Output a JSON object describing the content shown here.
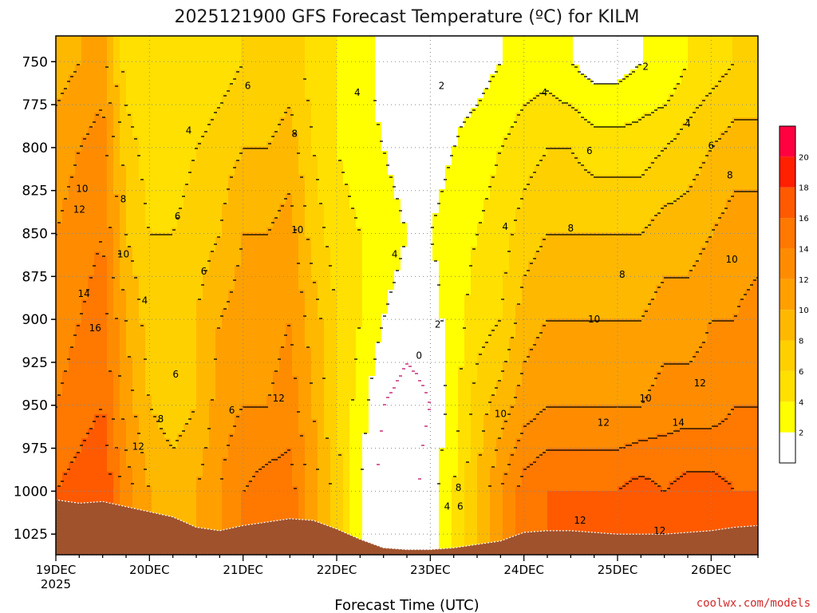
{
  "chart_data": {
    "type": "heatmap",
    "title": "2025121900 GFS Forecast Temperature (ºC) for KILM",
    "xlabel": "Forecast Time (UTC)",
    "ylabel": "",
    "x_ticks": [
      "19DEC",
      "20DEC",
      "21DEC",
      "22DEC",
      "23DEC",
      "24DEC",
      "25DEC",
      "26DEC"
    ],
    "x_tick_sub": "2025",
    "xlim": [
      "2025-12-19 00Z",
      "2025-12-26 12Z"
    ],
    "y_ticks": [
      750,
      775,
      800,
      825,
      850,
      875,
      900,
      925,
      950,
      975,
      1000,
      1025
    ],
    "ylim": [
      735,
      1037
    ],
    "y_unit": "hPa",
    "grid": true,
    "colorbar": {
      "levels": [
        0,
        2,
        4,
        6,
        8,
        10,
        12,
        14,
        16,
        18,
        20,
        22
      ],
      "labels": [
        "2",
        "4",
        "6",
        "8",
        "10",
        "12",
        "14",
        "16",
        "18",
        "20"
      ],
      "colors": [
        "#ffffff",
        "#ffff00",
        "#ffe000",
        "#ffd000",
        "#ffb800",
        "#ffa000",
        "#ff8c00",
        "#ff7800",
        "#ff5a00",
        "#ff2000",
        "#ff0040"
      ]
    },
    "time_days": [
      0,
      0.25,
      0.5,
      0.75,
      1,
      1.25,
      1.5,
      1.75,
      2,
      2.25,
      2.5,
      2.75,
      3,
      3.25,
      3.5,
      3.75,
      4,
      4.25,
      4.5,
      4.75,
      5,
      5.25,
      5.5,
      5.75,
      6,
      6.25,
      6.5,
      6.75,
      7,
      7.25,
      7.5
    ],
    "temperature_profiles": {
      "750": [
        9,
        10,
        11,
        5,
        4,
        4,
        4,
        5,
        6,
        6,
        7,
        5,
        4,
        3,
        1,
        0,
        0,
        1,
        1,
        2,
        3,
        3,
        2,
        1,
        1,
        2,
        2,
        4,
        5,
        6,
        6
      ],
      "800": [
        11,
        12,
        13,
        7,
        5,
        5,
        6,
        7,
        8,
        8,
        9,
        6,
        4,
        3,
        2,
        1,
        1,
        2,
        3,
        4,
        5,
        6,
        6,
        5,
        5,
        5,
        6,
        7,
        8,
        9,
        9
      ],
      "850": [
        12,
        13,
        14,
        8,
        6,
        6,
        7,
        8,
        10,
        10,
        11,
        7,
        5,
        4,
        3,
        2,
        2,
        3,
        4,
        5,
        7,
        8,
        8,
        8,
        8,
        8,
        9,
        9,
        10,
        11,
        11
      ],
      "900": [
        13,
        14,
        15,
        10,
        7,
        7,
        8,
        10,
        11,
        11,
        12,
        9,
        6,
        4,
        2,
        1,
        1,
        3,
        5,
        6,
        9,
        10,
        10,
        10,
        10,
        10,
        11,
        11,
        12,
        12,
        13
      ],
      "950": [
        14,
        15,
        16,
        11,
        8,
        7,
        8,
        11,
        12,
        12,
        13,
        10,
        6,
        3,
        0,
        -1,
        0,
        3,
        7,
        9,
        11,
        12,
        12,
        12,
        12,
        12,
        13,
        13,
        13,
        14,
        14
      ],
      "1000": [
        16,
        17,
        18,
        13,
        10,
        9,
        10,
        12,
        14,
        15,
        15,
        11,
        7,
        2,
        -1,
        -1,
        1,
        4,
        8,
        12,
        15,
        16,
        16,
        16,
        16,
        17,
        16,
        17,
        17,
        16,
        16
      ]
    },
    "contour_labels": [
      {
        "t": 0.28,
        "p": 824,
        "v": "10"
      },
      {
        "t": 0.25,
        "p": 836,
        "v": "12"
      },
      {
        "t": 0.72,
        "p": 830,
        "v": "8"
      },
      {
        "t": 0.72,
        "p": 862,
        "v": "10"
      },
      {
        "t": 0.3,
        "p": 885,
        "v": "14"
      },
      {
        "t": 0.42,
        "p": 905,
        "v": "16"
      },
      {
        "t": 0.95,
        "p": 889,
        "v": "4"
      },
      {
        "t": 1.3,
        "p": 840,
        "v": "6"
      },
      {
        "t": 1.42,
        "p": 790,
        "v": "4"
      },
      {
        "t": 1.58,
        "p": 872,
        "v": "6"
      },
      {
        "t": 1.28,
        "p": 932,
        "v": "6"
      },
      {
        "t": 1.12,
        "p": 958,
        "v": "8"
      },
      {
        "t": 0.88,
        "p": 974,
        "v": "12"
      },
      {
        "t": 2.05,
        "p": 764,
        "v": "6"
      },
      {
        "t": 2.55,
        "p": 792,
        "v": "8"
      },
      {
        "t": 2.58,
        "p": 848,
        "v": "10"
      },
      {
        "t": 1.88,
        "p": 953,
        "v": "6"
      },
      {
        "t": 2.38,
        "p": 946,
        "v": "12"
      },
      {
        "t": 3.22,
        "p": 768,
        "v": "4"
      },
      {
        "t": 3.62,
        "p": 862,
        "v": "4"
      },
      {
        "t": 4.12,
        "p": 764,
        "v": "2"
      },
      {
        "t": 4.08,
        "p": 903,
        "v": "2"
      },
      {
        "t": 3.88,
        "p": 921,
        "v": "0"
      },
      {
        "t": 4.3,
        "p": 998,
        "v": "8"
      },
      {
        "t": 4.18,
        "p": 1009,
        "v": "4"
      },
      {
        "t": 4.32,
        "p": 1009,
        "v": "6"
      },
      {
        "t": 4.8,
        "p": 846,
        "v": "4"
      },
      {
        "t": 5.22,
        "p": 768,
        "v": "4"
      },
      {
        "t": 5.5,
        "p": 847,
        "v": "8"
      },
      {
        "t": 5.7,
        "p": 802,
        "v": "6"
      },
      {
        "t": 5.75,
        "p": 900,
        "v": "10"
      },
      {
        "t": 4.75,
        "p": 955,
        "v": "10"
      },
      {
        "t": 6.05,
        "p": 874,
        "v": "8"
      },
      {
        "t": 6.3,
        "p": 753,
        "v": "2"
      },
      {
        "t": 6.75,
        "p": 786,
        "v": "4"
      },
      {
        "t": 7.0,
        "p": 799,
        "v": "6"
      },
      {
        "t": 7.2,
        "p": 816,
        "v": "8"
      },
      {
        "t": 7.22,
        "p": 865,
        "v": "10"
      },
      {
        "t": 6.3,
        "p": 946,
        "v": "10"
      },
      {
        "t": 5.85,
        "p": 960,
        "v": "12"
      },
      {
        "t": 6.65,
        "p": 960,
        "v": "14"
      },
      {
        "t": 6.88,
        "p": 937,
        "v": "12"
      },
      {
        "t": 5.6,
        "p": 1017,
        "v": "12"
      },
      {
        "t": 6.45,
        "p": 1023,
        "v": "12"
      }
    ],
    "surface_pressure": [
      1005,
      1007,
      1006,
      1009,
      1012,
      1015,
      1021,
      1023,
      1020,
      1018,
      1016,
      1017,
      1022,
      1028,
      1033,
      1034,
      1034,
      1033,
      1031,
      1029,
      1024,
      1023,
      1023,
      1024,
      1025,
      1025,
      1025,
      1024,
      1023,
      1021,
      1020
    ]
  },
  "credit": "coolwx.com/models",
  "colors": {
    "ground": "#a0522d",
    "contour": "#000000",
    "zero_contour": "#c0106a",
    "grid": "#888888",
    "credit": "#d12a2a"
  }
}
